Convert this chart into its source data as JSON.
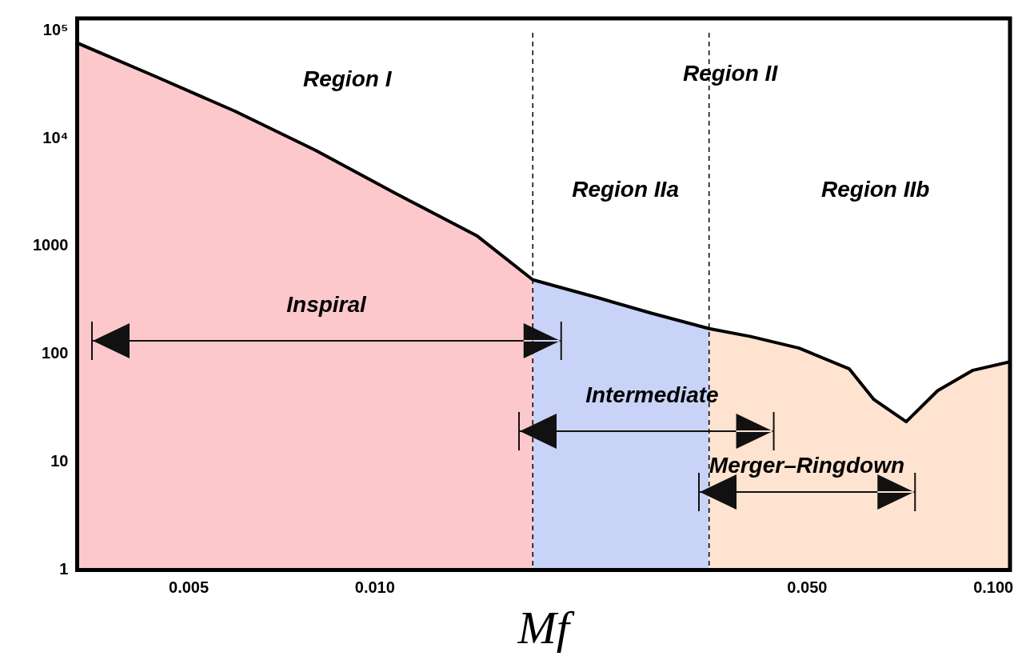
{
  "chart_data": {
    "type": "area",
    "xlabel": "Mf",
    "log": "xy",
    "grid": false,
    "marker": "none",
    "xlim": [
      0.0033,
      0.1064
    ],
    "ylim": [
      1,
      130000
    ],
    "xticks": [
      0.005,
      {
        "value": 0.01,
        "label": "0.010"
      },
      {
        "value": 0.05,
        "label": "0.050"
      },
      {
        "value": 0.1,
        "label": "0.100"
      }
    ],
    "yticks": [
      1,
      10,
      100,
      1000,
      {
        "value": 10000,
        "label": "10⁴"
      },
      {
        "value": 100000,
        "label": "10⁵"
      }
    ],
    "series": [
      {
        "color": "#fcc8cb",
        "x": [
          0.0033,
          0.0044,
          0.00593,
          0.00801,
          0.0108,
          0.0146,
          0.018
        ],
        "values": [
          77000,
          38000,
          18000,
          7800,
          3100,
          1260,
          490
        ]
      },
      {
        "color": "#c9d3f7",
        "x": [
          0.018,
          0.0229,
          0.028,
          0.0347
        ],
        "values": [
          490,
          335,
          240,
          173
        ]
      },
      {
        "color": "#fde3d0",
        "x": [
          0.0347,
          0.0405,
          0.0485,
          0.0585,
          0.0641,
          0.0723,
          0.0813,
          0.0927,
          0.1064
        ],
        "values": [
          173,
          146,
          114,
          73,
          38,
          23.7,
          46,
          71,
          85
        ]
      },
      {
        "type": "line",
        "color": "#000000",
        "line_style": "solid",
        "x": [
          0.0033,
          0.0044,
          0.00593,
          0.00801,
          0.0108,
          0.0146,
          0.018,
          0.0229,
          0.028,
          0.0347,
          0.0405,
          0.0485,
          0.0585,
          0.0641,
          0.0723,
          0.0813,
          0.0927,
          0.1064
        ],
        "values": [
          77000,
          38000,
          18000,
          7800,
          3100,
          1260,
          490,
          335,
          240,
          173,
          146,
          114,
          73,
          38,
          23.7,
          46,
          71,
          85
        ]
      }
    ],
    "ref_lines": [
      {
        "axis": "x",
        "value": 0.018,
        "color": "#000000",
        "line_style": "dashed"
      },
      {
        "axis": "x",
        "value": 0.0347,
        "color": "#000000",
        "line_style": "dashed"
      }
    ],
    "annotations": [
      "Region I",
      "Region II",
      "Region IIa",
      "Region IIb",
      "Inspiral",
      "Intermediate",
      "Merger–Ringdown"
    ]
  }
}
